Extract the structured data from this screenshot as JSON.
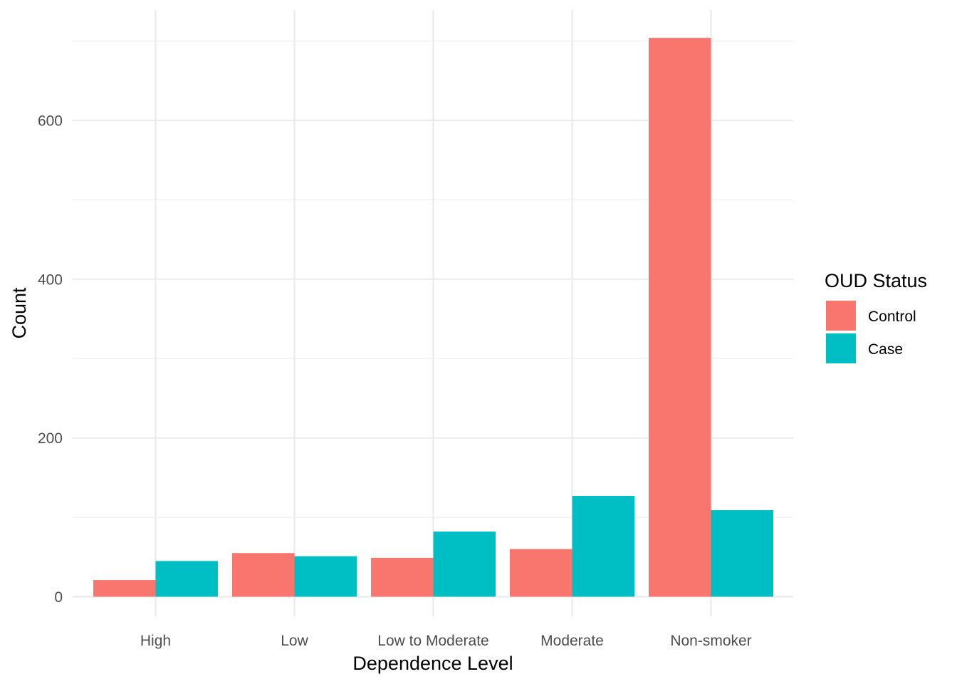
{
  "chart_data": {
    "type": "bar",
    "categories": [
      "High",
      "Low",
      "Low to Moderate",
      "Moderate",
      "Non-smoker"
    ],
    "series": [
      {
        "name": "Control",
        "color": "#F8766D",
        "values": [
          21,
          55,
          49,
          60,
          704
        ]
      },
      {
        "name": "Case",
        "color": "#00BFC4",
        "values": [
          45,
          51,
          82,
          127,
          109
        ]
      }
    ],
    "xlabel": "Dependence Level",
    "ylabel": "Count",
    "ylim": [
      -30,
      740
    ],
    "yticks": [
      0,
      200,
      400,
      600
    ],
    "grid": true,
    "legend": {
      "title": "OUD Status",
      "position": "right"
    }
  }
}
